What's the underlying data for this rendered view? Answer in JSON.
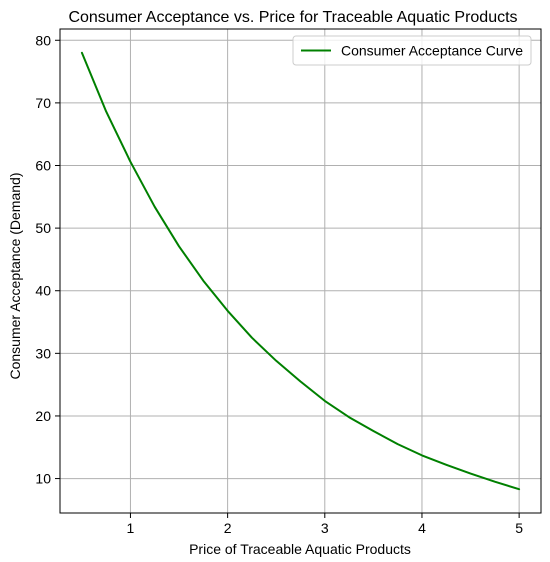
{
  "chart_data": {
    "type": "line",
    "title": "Consumer Acceptance vs. Price for Traceable Aquatic Products",
    "xlabel": "Price of Traceable Aquatic Products",
    "ylabel": "Consumer Acceptance (Demand)",
    "xlim": [
      0.275,
      5.225
    ],
    "ylim": [
      4.5,
      81.8
    ],
    "xticks": [
      1,
      2,
      3,
      4,
      5
    ],
    "yticks": [
      10,
      20,
      30,
      40,
      50,
      60,
      70,
      80
    ],
    "grid": true,
    "legend": {
      "position": "top-right"
    },
    "series": [
      {
        "name": "Consumer Acceptance Curve",
        "color": "#008000",
        "x": [
          0.5,
          0.75,
          1.0,
          1.25,
          1.5,
          1.75,
          2.0,
          2.25,
          2.5,
          2.75,
          3.0,
          3.25,
          3.5,
          3.75,
          4.0,
          4.25,
          4.5,
          4.75,
          5.0
        ],
        "y": [
          78.0,
          68.6,
          60.6,
          53.4,
          47.1,
          41.6,
          36.8,
          32.5,
          28.8,
          25.5,
          22.4,
          19.8,
          17.6,
          15.5,
          13.7,
          12.2,
          10.8,
          9.5,
          8.3
        ]
      }
    ]
  }
}
